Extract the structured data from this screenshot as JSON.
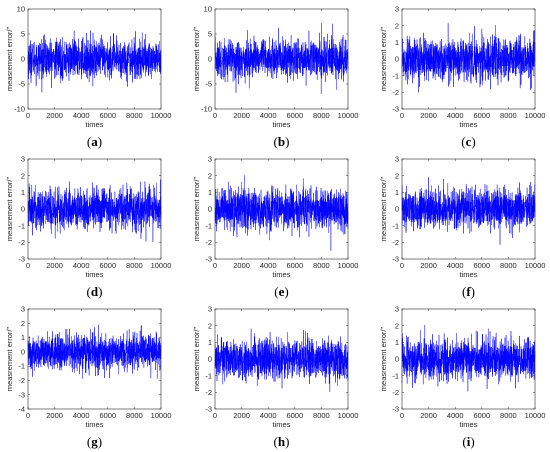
{
  "colors": {
    "signal": "#0000ff",
    "axis": "#262626",
    "background": "#ffffff"
  },
  "chart_data": [
    {
      "panel": "a",
      "type": "line",
      "xlabel": "times",
      "ylabel": "measrement error/\"",
      "xlim": [
        0,
        10000
      ],
      "ylim": [
        -10,
        10
      ],
      "xticks": [
        0,
        2000,
        4000,
        6000,
        8000,
        10000
      ],
      "yticks": [
        -10,
        -5,
        0,
        5,
        10
      ],
      "series": [
        {
          "samples": 10000,
          "mean": 0,
          "std": 1.9,
          "min": -7.5,
          "max": 8.3
        }
      ]
    },
    {
      "panel": "b",
      "type": "line",
      "xlabel": "times",
      "ylabel": "measrement error/\"",
      "xlim": [
        0,
        10000
      ],
      "ylim": [
        -10,
        10
      ],
      "xticks": [
        0,
        2000,
        4000,
        6000,
        8000,
        10000
      ],
      "yticks": [
        -10,
        -5,
        0,
        5,
        10
      ],
      "series": [
        {
          "samples": 10000,
          "mean": 0,
          "std": 1.9,
          "min": -7.2,
          "max": 7.8
        }
      ]
    },
    {
      "panel": "c",
      "type": "line",
      "xlabel": "times",
      "ylabel": "measrement error/\"",
      "xlim": [
        0,
        10000
      ],
      "ylim": [
        -3,
        3
      ],
      "xticks": [
        0,
        2000,
        4000,
        6000,
        8000,
        10000
      ],
      "yticks": [
        -3,
        -2,
        -1,
        0,
        1,
        2,
        3
      ],
      "series": [
        {
          "samples": 10000,
          "mean": 0,
          "std": 0.62,
          "min": -2.5,
          "max": 2.6
        }
      ]
    },
    {
      "panel": "d",
      "type": "line",
      "xlabel": "times",
      "ylabel": "measrement error/\"",
      "xlim": [
        0,
        10000
      ],
      "ylim": [
        -3,
        3
      ],
      "xticks": [
        0,
        2000,
        4000,
        6000,
        8000,
        10000
      ],
      "yticks": [
        -3,
        -2,
        -1,
        0,
        1,
        2,
        3
      ],
      "series": [
        {
          "samples": 10000,
          "mean": 0,
          "std": 0.62,
          "min": -2.4,
          "max": 2.6
        }
      ]
    },
    {
      "panel": "e",
      "type": "line",
      "xlabel": "times",
      "ylabel": "measrement error/\"",
      "xlim": [
        0,
        10000
      ],
      "ylim": [
        -3,
        3
      ],
      "xticks": [
        0,
        2000,
        4000,
        6000,
        8000,
        10000
      ],
      "yticks": [
        -3,
        -2,
        -1,
        0,
        1,
        2,
        3
      ],
      "series": [
        {
          "samples": 10000,
          "mean": 0,
          "std": 0.6,
          "min": -2.5,
          "max": 2.4
        }
      ]
    },
    {
      "panel": "f",
      "type": "line",
      "xlabel": "times",
      "ylabel": "measrement error/\"",
      "xlim": [
        0,
        10000
      ],
      "ylim": [
        -3,
        3
      ],
      "xticks": [
        0,
        2000,
        4000,
        6000,
        8000,
        10000
      ],
      "yticks": [
        -3,
        -2,
        -1,
        0,
        1,
        2,
        3
      ],
      "series": [
        {
          "samples": 10000,
          "mean": 0,
          "std": 0.6,
          "min": -2.4,
          "max": 2.5
        }
      ]
    },
    {
      "panel": "g",
      "type": "line",
      "xlabel": "times",
      "ylabel": "measrement error/\"",
      "xlim": [
        0,
        10000
      ],
      "ylim": [
        -4,
        3
      ],
      "xticks": [
        0,
        2000,
        4000,
        6000,
        8000,
        10000
      ],
      "yticks": [
        -4,
        -3,
        -2,
        -1,
        0,
        1,
        2,
        3
      ],
      "series": [
        {
          "samples": 10000,
          "mean": 0,
          "std": 0.62,
          "min": -3.3,
          "max": 2.5
        }
      ]
    },
    {
      "panel": "h",
      "type": "line",
      "xlabel": "times",
      "ylabel": "measrement error/\"",
      "xlim": [
        0,
        10000
      ],
      "ylim": [
        -3,
        3
      ],
      "xticks": [
        0,
        2000,
        4000,
        6000,
        8000,
        10000
      ],
      "yticks": [
        -3,
        -2,
        -1,
        0,
        1,
        2,
        3
      ],
      "series": [
        {
          "samples": 10000,
          "mean": 0,
          "std": 0.6,
          "min": -2.6,
          "max": 2.4
        }
      ]
    },
    {
      "panel": "i",
      "type": "line",
      "xlabel": "times",
      "ylabel": "measrement error/\"",
      "xlim": [
        0,
        10000
      ],
      "ylim": [
        -3,
        3
      ],
      "xticks": [
        0,
        2000,
        4000,
        6000,
        8000,
        10000
      ],
      "yticks": [
        -3,
        -2,
        -1,
        0,
        1,
        2,
        3
      ],
      "series": [
        {
          "samples": 10000,
          "mean": 0,
          "std": 0.6,
          "min": -2.7,
          "max": 2.4
        }
      ]
    }
  ],
  "captions": [
    "(a)",
    "(b)",
    "(c)",
    "(d)",
    "(e)",
    "(f)",
    "(g)",
    "(h)",
    "(i)"
  ]
}
